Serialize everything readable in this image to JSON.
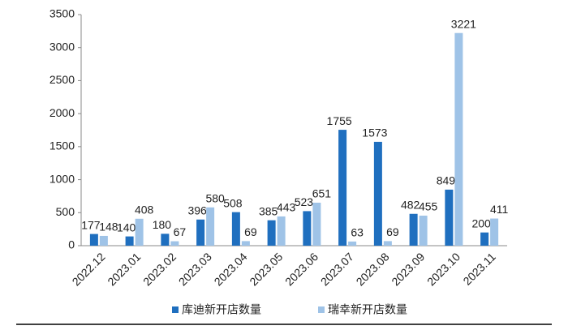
{
  "chart_data": {
    "type": "bar",
    "categories": [
      "2022.12",
      "2023.01",
      "2023.02",
      "2023.03",
      "2023.04",
      "2023.05",
      "2023.06",
      "2023.07",
      "2023.08",
      "2023.09",
      "2023.10",
      "2023.11"
    ],
    "series": [
      {
        "name": "库迪新开店数量",
        "color": "#1f6fbf",
        "values": [
          177,
          140,
          180,
          396,
          508,
          385,
          523,
          1755,
          1573,
          482,
          849,
          200
        ]
      },
      {
        "name": "瑞幸新开店数量",
        "color": "#9fc3e7",
        "values": [
          148,
          408,
          67,
          580,
          69,
          443,
          651,
          63,
          69,
          455,
          3221,
          411
        ]
      }
    ],
    "ylim": [
      0,
      3500
    ],
    "yticks": [
      0,
      500,
      1000,
      1500,
      2000,
      2500,
      3000,
      3500
    ],
    "grid": false,
    "legend": "bottom"
  }
}
